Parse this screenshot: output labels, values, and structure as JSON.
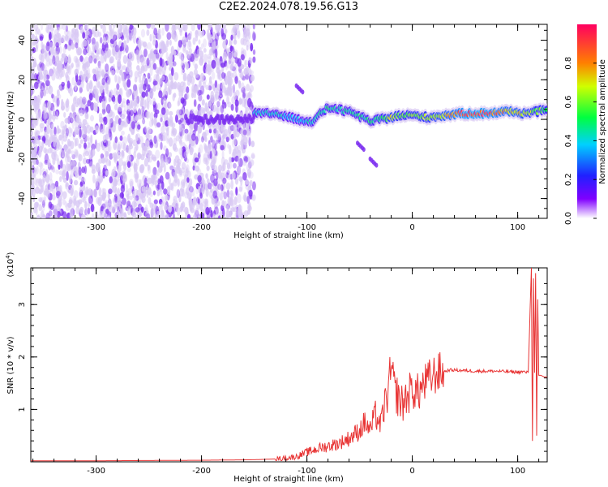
{
  "title": "C2E2.2024.078.19.56.G13",
  "colors": {
    "spectrogram_low": "#d8c8f4",
    "spectrogram_mid": "#7a2cf0",
    "snr_line": "#e83434",
    "axis": "#000000"
  },
  "chart_data": [
    {
      "type": "heatmap",
      "title": "C2E2.2024.078.19.56.G13",
      "xlabel": "Height of straight line (km)",
      "ylabel": "Frequency (Hz)",
      "xlim": [
        -362,
        128
      ],
      "ylim": [
        -50,
        48
      ],
      "x_ticks": [
        -300,
        -200,
        -100,
        0,
        100
      ],
      "x_tick_labels": [
        "-300",
        "-200",
        "-100",
        "0",
        "100"
      ],
      "y_ticks": [
        -40,
        -20,
        0,
        20,
        40
      ],
      "y_tick_labels": [
        "-40",
        "-20",
        "0",
        "20",
        "40"
      ],
      "colorbar": {
        "label": "Normalized spectral amplitude",
        "range": [
          0.0,
          1.0
        ],
        "ticks": [
          0.0,
          0.2,
          0.4,
          0.6,
          0.8
        ],
        "tick_labels": [
          "0.0",
          "0.2",
          "0.4",
          "0.6",
          "0.8"
        ],
        "colormap": "rainbow"
      },
      "regions": [
        {
          "x_range": [
            -362,
            -150
          ],
          "f_range": [
            -50,
            48
          ],
          "amplitude": 0.15,
          "description_hidden": true
        },
        {
          "x_range": [
            -150,
            128
          ],
          "f_center": 2,
          "f_width": 5,
          "amplitude": 0.9
        }
      ],
      "trace": [
        {
          "x": -150,
          "f": 3,
          "a": 0.4
        },
        {
          "x": -130,
          "f": 3,
          "a": 0.45
        },
        {
          "x": -110,
          "f": 0,
          "a": 0.4
        },
        {
          "x": -95,
          "f": -1,
          "a": 0.45
        },
        {
          "x": -80,
          "f": 6,
          "a": 0.5
        },
        {
          "x": -70,
          "f": 5,
          "a": 0.45
        },
        {
          "x": -55,
          "f": 3,
          "a": 0.5
        },
        {
          "x": -40,
          "f": -1,
          "a": 0.5
        },
        {
          "x": -30,
          "f": 0,
          "a": 0.55
        },
        {
          "x": -20,
          "f": 1,
          "a": 0.7
        },
        {
          "x": -10,
          "f": 2,
          "a": 0.6
        },
        {
          "x": 0,
          "f": 2,
          "a": 0.65
        },
        {
          "x": 15,
          "f": 1,
          "a": 0.65
        },
        {
          "x": 30,
          "f": 2,
          "a": 0.75
        },
        {
          "x": 50,
          "f": 3,
          "a": 0.95
        },
        {
          "x": 70,
          "f": 3,
          "a": 0.95
        },
        {
          "x": 90,
          "f": 4,
          "a": 0.8
        },
        {
          "x": 110,
          "f": 3,
          "a": 0.7
        },
        {
          "x": 128,
          "f": 5,
          "a": 0.55
        }
      ],
      "blips": [
        {
          "x": -110,
          "f": 17
        },
        {
          "x": -52,
          "f": -12
        },
        {
          "x": -40,
          "f": -20
        }
      ]
    },
    {
      "type": "line",
      "xlabel": "Height of straight line (km)",
      "ylabel": "SNR (10 * v/v)",
      "multiplier_label": "(x10",
      "multiplier_exp": "4",
      "multiplier_close": ")",
      "xlim": [
        -362,
        128
      ],
      "ylim": [
        0,
        3.7
      ],
      "x_ticks": [
        -300,
        -200,
        -100,
        0,
        100
      ],
      "x_tick_labels": [
        "-300",
        "-200",
        "-100",
        "0",
        "100"
      ],
      "y_ticks": [
        1,
        2,
        3
      ],
      "y_tick_labels": [
        "1",
        "2",
        "3"
      ],
      "series": [
        {
          "x": [
            -362,
            -300,
            -200,
            -150,
            -125,
            -110,
            -100,
            -90,
            -80,
            -70,
            -60,
            -50,
            -45,
            -40,
            -35,
            -30,
            -25,
            -22,
            -20,
            -17,
            -15,
            -10,
            -5,
            0,
            5,
            10,
            15,
            20,
            25,
            30,
            35,
            40,
            60,
            80,
            90,
            100,
            105,
            110,
            113,
            114,
            115,
            116,
            117,
            118,
            119,
            120,
            122,
            125,
            128
          ],
          "y": [
            0.02,
            0.02,
            0.03,
            0.04,
            0.06,
            0.1,
            0.18,
            0.25,
            0.3,
            0.35,
            0.45,
            0.6,
            0.75,
            0.6,
            0.9,
            0.7,
            1.2,
            1.4,
            1.8,
            1.4,
            1.3,
            1.1,
            1.25,
            1.4,
            1.3,
            1.45,
            1.55,
            1.65,
            1.7,
            1.72,
            1.75,
            1.75,
            1.73,
            1.73,
            1.72,
            1.71,
            1.72,
            1.7,
            3.7,
            0.4,
            3.5,
            1.7,
            3.6,
            0.5,
            3.1,
            1.65,
            1.65,
            1.62,
            1.62
          ]
        }
      ]
    }
  ]
}
